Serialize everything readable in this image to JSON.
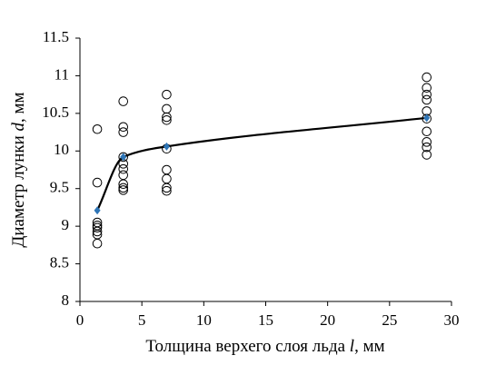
{
  "chart_data": {
    "type": "scatter",
    "xlabel": [
      "Толщина верхего слоя льда ",
      "l",
      ", мм"
    ],
    "ylabel": [
      "Диаметр лунки ",
      "d",
      ", мм"
    ],
    "xlim": [
      0,
      30
    ],
    "xticks": [
      0,
      5,
      10,
      15,
      20,
      25,
      30
    ],
    "ylim": [
      8,
      11.5
    ],
    "yticks": [
      8,
      8.5,
      9,
      9.5,
      10,
      10.5,
      11,
      11.5
    ],
    "series": [
      {
        "marker": "circle",
        "color": "#000000",
        "x": [
          1.4,
          1.4,
          1.4,
          1.4,
          1.4,
          1.4,
          1.4,
          1.4,
          3.5,
          3.5,
          3.5,
          3.5,
          3.5,
          3.5,
          3.5,
          3.5,
          3.5,
          3.5,
          7,
          7,
          7,
          7,
          7,
          7,
          7,
          7,
          7,
          28,
          28,
          28,
          28,
          28,
          28,
          28,
          28,
          28,
          28
        ],
        "values": [
          10.29,
          9.58,
          9.05,
          9.01,
          8.98,
          8.93,
          8.89,
          8.77,
          10.66,
          10.32,
          10.25,
          9.92,
          9.83,
          9.76,
          9.68,
          9.56,
          9.51,
          9.48,
          10.75,
          10.56,
          10.45,
          10.41,
          10.03,
          9.75,
          9.63,
          9.51,
          9.47,
          10.98,
          10.84,
          10.75,
          10.68,
          10.53,
          10.43,
          10.26,
          10.12,
          10.05,
          9.95
        ]
      },
      {
        "marker": "diamond",
        "color": "#2e75b6",
        "smooth_line": true,
        "line_color": "#000000",
        "x": [
          1.4,
          3.5,
          7,
          28
        ],
        "values": [
          9.21,
          9.92,
          10.06,
          10.44
        ]
      }
    ]
  }
}
